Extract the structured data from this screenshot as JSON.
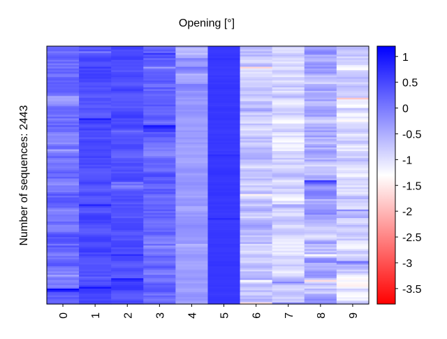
{
  "chart_data": {
    "type": "heatmap",
    "title": "Opening [°]",
    "ylabel": "Number of sequences: 2443",
    "xlabel": "",
    "x_categories": [
      "0",
      "1",
      "2",
      "3",
      "4",
      "5",
      "6",
      "7",
      "8",
      "9"
    ],
    "row_count": 2443,
    "colormap": "bwr_r",
    "colorbar": {
      "range": [
        -3.8,
        1.2
      ],
      "ticks": [
        "1",
        "0.5",
        "0",
        "-0.5",
        "-1",
        "-1.5",
        "-2",
        "-2.5",
        "-3",
        "-3.5"
      ],
      "tick_values": [
        1,
        0.5,
        0,
        -0.5,
        -1,
        -1.5,
        -2,
        -2.5,
        -3,
        -3.5
      ],
      "low_color": "#ff0000",
      "mid_color": "#ffffff",
      "high_color": "#0000ff"
    },
    "column_means": [
      0.1,
      0.45,
      0.45,
      0.2,
      -0.3,
      0.65,
      -0.7,
      -0.9,
      -0.6,
      -0.9
    ],
    "column_spread": [
      0.35,
      0.2,
      0.2,
      0.3,
      0.15,
      0.05,
      0.35,
      0.35,
      0.45,
      0.4
    ]
  }
}
